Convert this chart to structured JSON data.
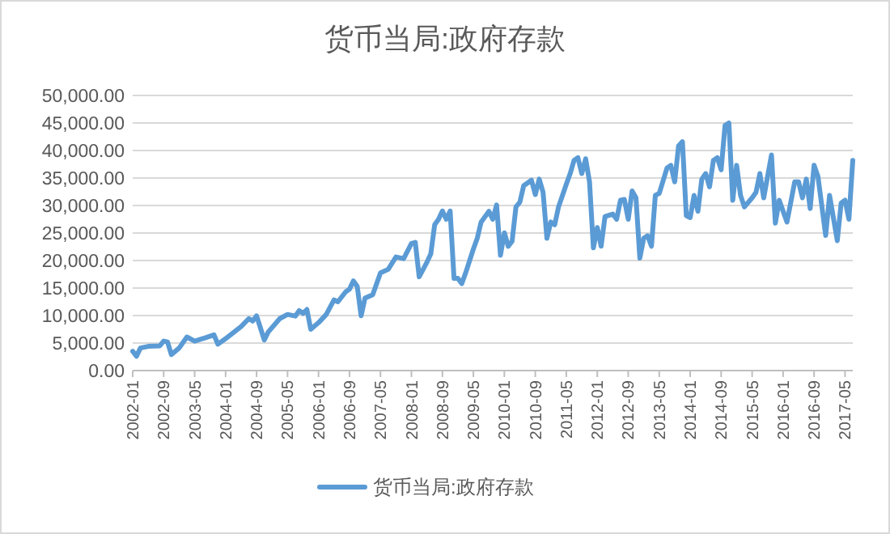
{
  "chart_data": {
    "type": "line",
    "title": "货币当局:政府存款",
    "x": [
      "2002-01",
      "2002-02",
      "2002-03",
      "2002-05",
      "2002-08",
      "2002-09",
      "2002-10",
      "2002-11",
      "2003-01",
      "2003-03",
      "2003-05",
      "2003-08",
      "2003-10",
      "2003-11",
      "2004-01",
      "2004-05",
      "2004-07",
      "2004-08",
      "2004-09",
      "2004-11",
      "2004-12",
      "2005-03",
      "2005-05",
      "2005-07",
      "2005-08",
      "2005-09",
      "2005-10",
      "2005-11",
      "2006-01",
      "2006-03",
      "2006-05",
      "2006-06",
      "2006-08",
      "2006-09",
      "2006-10",
      "2006-11",
      "2006-12",
      "2007-01",
      "2007-03",
      "2007-05",
      "2007-07",
      "2007-09",
      "2007-11",
      "2008-01",
      "2008-02",
      "2008-03",
      "2008-05",
      "2008-06",
      "2008-07",
      "2008-08",
      "2008-09",
      "2008-10",
      "2008-11",
      "2008-12",
      "2009-01",
      "2009-02",
      "2009-03",
      "2009-05",
      "2009-06",
      "2009-07",
      "2009-09",
      "2009-10",
      "2009-11",
      "2009-12",
      "2010-01",
      "2010-02",
      "2010-03",
      "2010-04",
      "2010-05",
      "2010-06",
      "2010-08",
      "2010-09",
      "2010-10",
      "2010-11",
      "2010-12",
      "2011-01",
      "2011-02",
      "2011-03",
      "2011-05",
      "2011-06",
      "2011-07",
      "2011-08",
      "2011-09",
      "2011-10",
      "2011-11",
      "2011-12",
      "2012-01",
      "2012-02",
      "2012-03",
      "2012-05",
      "2012-06",
      "2012-07",
      "2012-08",
      "2012-09",
      "2012-10",
      "2012-11",
      "2012-12",
      "2013-01",
      "2013-02",
      "2013-03",
      "2013-04",
      "2013-05",
      "2013-07",
      "2013-08",
      "2013-09",
      "2013-10",
      "2013-11",
      "2013-12",
      "2014-01",
      "2014-02",
      "2014-03",
      "2014-04",
      "2014-05",
      "2014-06",
      "2014-07",
      "2014-08",
      "2014-09",
      "2014-10",
      "2014-11",
      "2014-12",
      "2015-01",
      "2015-02",
      "2015-03",
      "2015-05",
      "2015-06",
      "2015-07",
      "2015-08",
      "2015-10",
      "2015-11",
      "2015-12",
      "2016-02",
      "2016-04",
      "2016-05",
      "2016-06",
      "2016-07",
      "2016-08",
      "2016-09",
      "2016-10",
      "2016-12",
      "2017-01",
      "2017-03",
      "2017-04",
      "2017-05",
      "2017-06",
      "2017-07"
    ],
    "series": [
      {
        "name": "货币当局:政府存款",
        "color": "#5b9bd5",
        "values": [
          3500,
          2600,
          4100,
          4400,
          4500,
          5350,
          5200,
          2900,
          4100,
          6100,
          5350,
          6000,
          6500,
          4800,
          5800,
          8000,
          9450,
          9000,
          9950,
          5550,
          7000,
          9450,
          10200,
          9900,
          10900,
          10400,
          11100,
          7500,
          8700,
          10200,
          12850,
          12500,
          14300,
          14800,
          16300,
          15300,
          9950,
          13150,
          13800,
          17750,
          18400,
          20650,
          20350,
          23100,
          23300,
          17050,
          19700,
          21200,
          26500,
          27500,
          29000,
          27500,
          29000,
          16750,
          16750,
          15800,
          17750,
          22100,
          24050,
          27000,
          28950,
          27500,
          30100,
          20950,
          25050,
          22600,
          23500,
          29750,
          30600,
          33600,
          34600,
          32000,
          34800,
          32400,
          24050,
          27000,
          26500,
          29750,
          33850,
          35800,
          38200,
          38700,
          35800,
          38500,
          34300,
          22300,
          26000,
          22600,
          28000,
          28450,
          27500,
          30950,
          31100,
          27500,
          32650,
          31400,
          20450,
          24050,
          24500,
          22600,
          31850,
          32200,
          36800,
          37300,
          34300,
          40850,
          41600,
          28150,
          27800,
          31850,
          28950,
          34800,
          35800,
          33400,
          38200,
          38700,
          36500,
          44550,
          45000,
          30950,
          37300,
          31850,
          29750,
          31400,
          32400,
          35800,
          31400,
          39200,
          26800,
          30950,
          27000,
          34300,
          34300,
          31400,
          34800,
          29450,
          37300,
          35300,
          24550,
          31850,
          23600,
          30450,
          30950,
          27500,
          38200
        ]
      }
    ],
    "xlim": [
      "2002-01",
      "2017-07"
    ],
    "xticks": [
      "2002-01",
      "2002-09",
      "2003-05",
      "2004-01",
      "2004-09",
      "2005-05",
      "2006-01",
      "2006-09",
      "2007-05",
      "2008-01",
      "2008-09",
      "2009-05",
      "2010-01",
      "2010-09",
      "2011-05",
      "2012-01",
      "2012-09",
      "2013-05",
      "2014-01",
      "2014-09",
      "2015-05",
      "2016-01",
      "2016-09",
      "2017-05"
    ],
    "ylim": [
      0,
      50000
    ],
    "yticks": [
      {
        "value": 0,
        "label": "0.00"
      },
      {
        "value": 5000,
        "label": "5,000.00"
      },
      {
        "value": 10000,
        "label": "10,000.00"
      },
      {
        "value": 15000,
        "label": "15,000.00"
      },
      {
        "value": 20000,
        "label": "20,000.00"
      },
      {
        "value": 25000,
        "label": "25,000.00"
      },
      {
        "value": 30000,
        "label": "30,000.00"
      },
      {
        "value": 35000,
        "label": "35,000.00"
      },
      {
        "value": 40000,
        "label": "40,000.00"
      },
      {
        "value": 45000,
        "label": "45,000.00"
      },
      {
        "value": 50000,
        "label": "50,000.00"
      }
    ],
    "grid": "y",
    "legend": "bottom"
  }
}
